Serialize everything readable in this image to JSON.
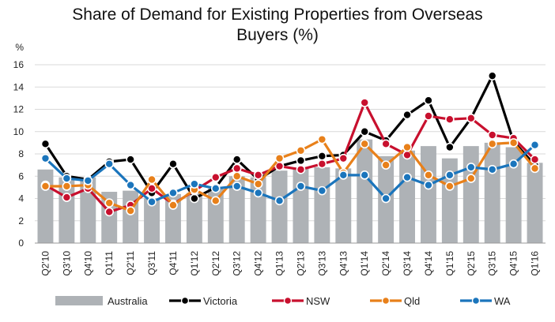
{
  "chart_data": {
    "type": "bar+line",
    "title_lines": [
      "Share of Demand for Existing Properties from Overseas",
      "Buyers (%)"
    ],
    "ylabel": "%",
    "xlabel": "",
    "ylim": [
      0,
      16
    ],
    "yticks": [
      0,
      2,
      4,
      6,
      8,
      10,
      12,
      14,
      16
    ],
    "grid": true,
    "legend_position": "bottom",
    "categories": [
      "Q2'10",
      "Q3'10",
      "Q4'10",
      "Q1'11",
      "Q2'11",
      "Q3'11",
      "Q4'11",
      "Q1'12",
      "Q2'12",
      "Q3'12",
      "Q4'12",
      "Q1'13",
      "Q2'13",
      "Q3'13",
      "Q4'13",
      "Q1'14",
      "Q2'14",
      "Q3'14",
      "Q4'14",
      "Q1'15",
      "Q2'15",
      "Q3'15",
      "Q4'15",
      "Q1'16"
    ],
    "bar_series": {
      "name": "Australia",
      "color": "#aeb2b6",
      "values": [
        6.6,
        5.9,
        5.9,
        4.6,
        4.7,
        4.0,
        4.4,
        4.5,
        4.9,
        6.0,
        5.9,
        6.5,
        6.7,
        6.8,
        6.7,
        9.3,
        7.8,
        8.3,
        8.7,
        7.6,
        8.7,
        9.0,
        8.6,
        7.2
      ]
    },
    "line_series": [
      {
        "name": "Victoria",
        "color": "#000000",
        "values": [
          8.9,
          6.0,
          5.7,
          7.3,
          7.5,
          4.5,
          7.1,
          4.0,
          5.0,
          7.5,
          5.7,
          6.9,
          7.4,
          7.8,
          7.9,
          10.0,
          9.2,
          11.5,
          12.8,
          8.6,
          11.2,
          15.0,
          9.1,
          7.0
        ]
      },
      {
        "name": "NSW",
        "color": "#c8102e",
        "values": [
          5.2,
          4.1,
          4.9,
          2.8,
          3.4,
          4.9,
          3.5,
          4.7,
          5.9,
          6.7,
          6.1,
          6.9,
          6.6,
          7.1,
          7.6,
          12.6,
          8.9,
          7.9,
          11.4,
          11.1,
          11.2,
          9.7,
          9.4,
          7.5
        ]
      },
      {
        "name": "Qld",
        "color": "#e8801a",
        "values": [
          5.1,
          5.1,
          5.2,
          3.6,
          2.9,
          5.7,
          3.4,
          4.8,
          3.8,
          6.0,
          5.3,
          7.6,
          8.3,
          9.3,
          6.3,
          8.9,
          7.0,
          8.6,
          6.1,
          5.1,
          5.8,
          8.9,
          9.0,
          6.7
        ]
      },
      {
        "name": "WA",
        "color": "#1b75bc",
        "values": [
          7.6,
          5.8,
          5.6,
          7.1,
          5.2,
          3.7,
          4.5,
          5.3,
          4.9,
          5.1,
          4.5,
          3.8,
          5.1,
          4.7,
          6.1,
          6.1,
          4.0,
          5.9,
          5.2,
          6.1,
          6.8,
          6.6,
          7.1,
          8.8
        ]
      }
    ]
  }
}
